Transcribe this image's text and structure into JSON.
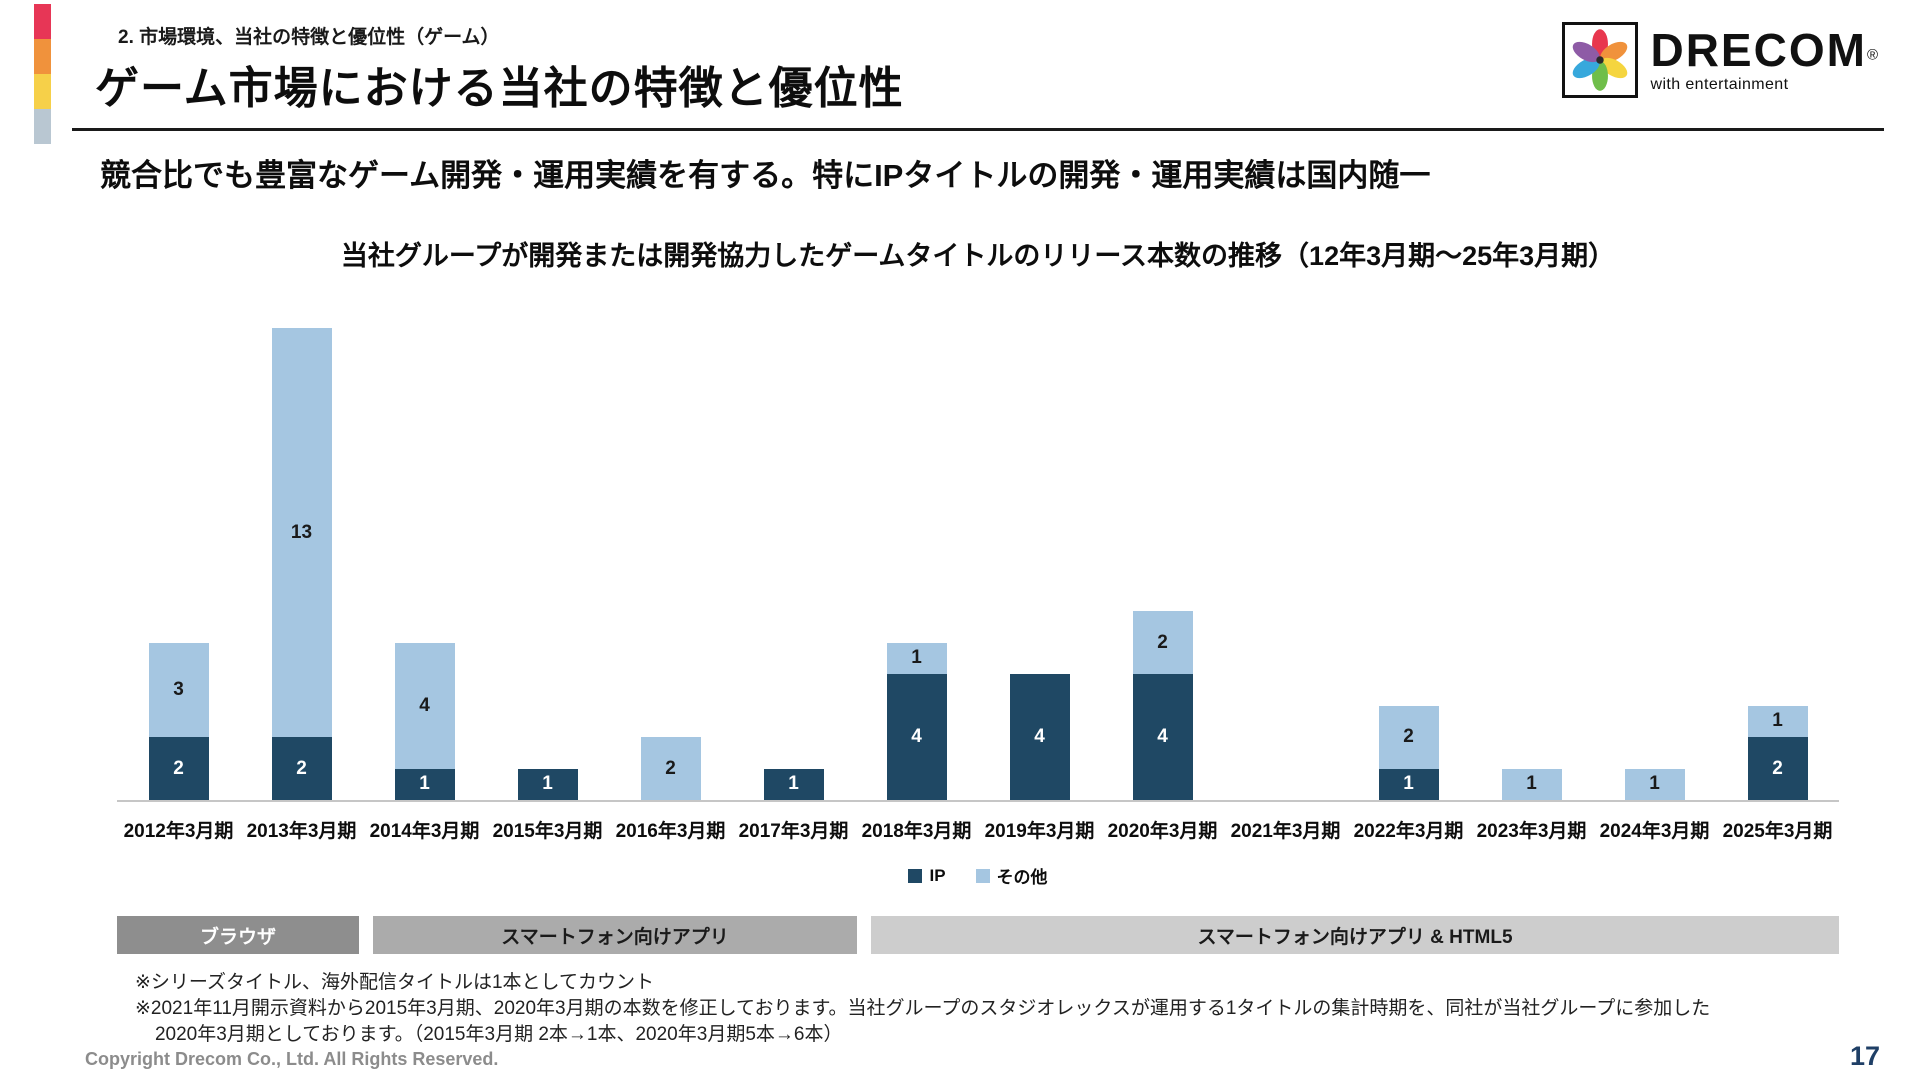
{
  "header": {
    "breadcrumb": "2. 市場環境、当社の特徴と優位性（ゲーム）",
    "title": "ゲーム市場における当社の特徴と優位性"
  },
  "logo": {
    "name": "DRECOM",
    "registered": "®",
    "tagline": "with entertainment",
    "petal_colors": [
      "#E8374E",
      "#F0923C",
      "#F5D53F",
      "#6FBE4A",
      "#37A8DC",
      "#8E5BA6"
    ]
  },
  "lead": "競合比でも豊富なゲーム開発・運用実績を有する。特にIPタイトルの開発・運用実績は国内随一",
  "chart_title": "当社グループが開発または開発協力したゲームタイトルのリリース本数の推移（12年3月期～25年3月期）",
  "chart_data": {
    "type": "bar",
    "stacked": true,
    "grid": false,
    "legend_position": "bottom",
    "ylim": [
      0,
      15
    ],
    "categories": [
      "2012年3月期",
      "2013年3月期",
      "2014年3月期",
      "2015年3月期",
      "2016年3月期",
      "2017年3月期",
      "2018年3月期",
      "2019年3月期",
      "2020年3月期",
      "2021年3月期",
      "2022年3月期",
      "2023年3月期",
      "2024年3月期",
      "2025年3月期"
    ],
    "series": [
      {
        "name": "IP",
        "color": "#1F4864",
        "label_color": "#FFFFFF",
        "values": [
          2,
          2,
          1,
          1,
          0,
          1,
          4,
          4,
          4,
          0,
          1,
          0,
          0,
          2
        ]
      },
      {
        "name": "その他",
        "color": "#A5C6E1",
        "label_color": "#1A1A1A",
        "values": [
          3,
          13,
          4,
          0,
          2,
          0,
          1,
          0,
          2,
          0,
          2,
          1,
          1,
          1
        ]
      }
    ]
  },
  "era_bands": [
    {
      "label": "ブラウザ",
      "span": 2,
      "color": "#8E8E8E",
      "text_color": "#FFFFFF"
    },
    {
      "label": "スマートフォン向けアプリ",
      "span": 4,
      "color": "#ABABAB",
      "text_color": "#1A1A1A"
    },
    {
      "label": "スマートフォン向けアプリ & HTML5",
      "span": 8,
      "color": "#CDCDCD",
      "text_color": "#1A1A1A"
    }
  ],
  "footnotes": [
    "※シリーズタイトル、海外配信タイトルは1本としてカウント",
    "※2021年11月開示資料から2015年3月期、2020年3月期の本数を修正しております。当社グループのスタジオレックスが運用する1タイトルの集計時期を、同社が当社グループに参加した\n2020年3月期としております。（2015年3月期 2本→1本、2020年3月期5本→6本）"
  ],
  "footer": {
    "copyright": "Copyright Drecom Co., Ltd. All Rights Reserved.",
    "page_number": "17"
  },
  "accent_strip_colors": [
    "#E73656",
    "#F0923C",
    "#F6D049",
    "#B9C7D2"
  ]
}
